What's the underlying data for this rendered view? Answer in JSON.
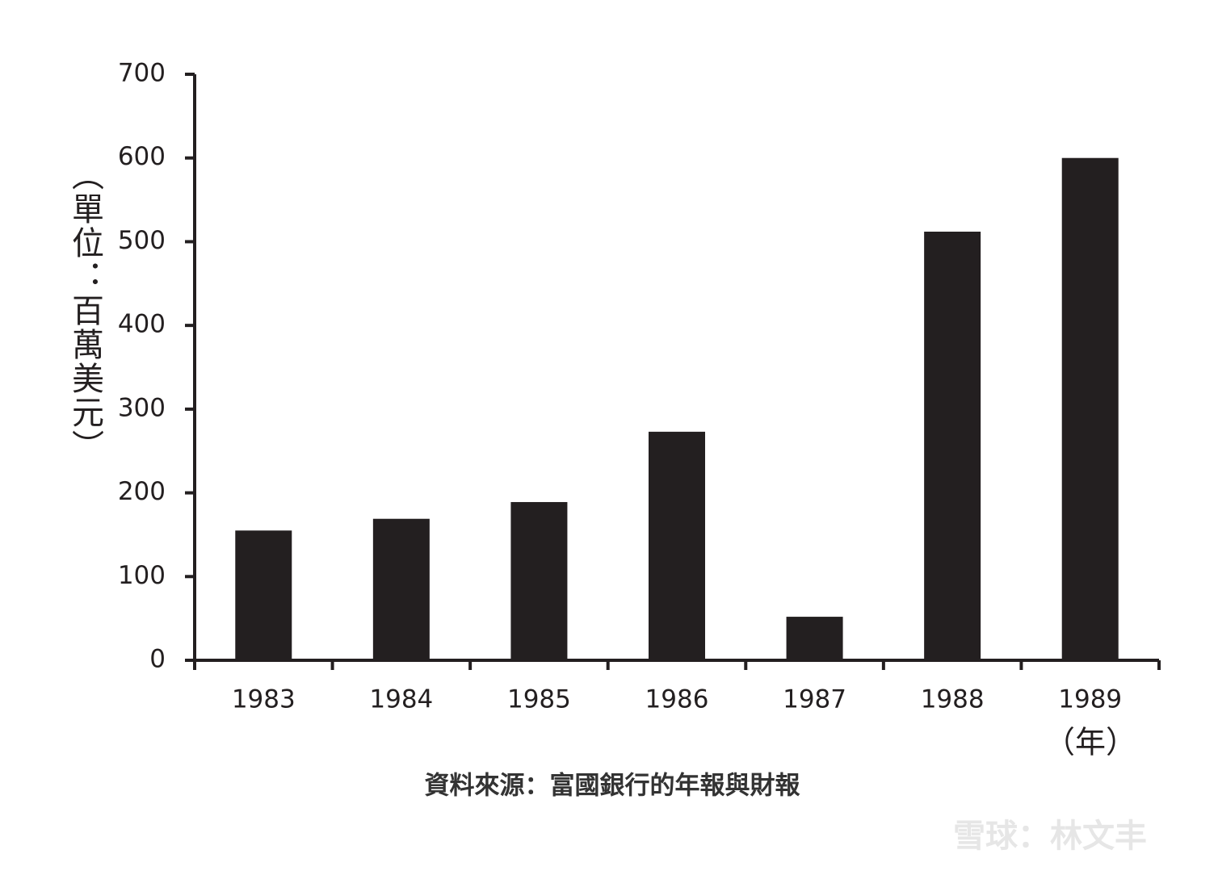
{
  "chart_data": {
    "type": "bar",
    "y_label": "（單位：百萬美元）",
    "x_label": "（年）",
    "source": "資料來源：富國銀行的年報與財報",
    "watermark": "雪球：林文丰",
    "categories": [
      "1983",
      "1984",
      "1985",
      "1986",
      "1987",
      "1988",
      "1989"
    ],
    "values": [
      155,
      169,
      189,
      273,
      52,
      512,
      600
    ],
    "color": "#231f20",
    "ylim": [
      0,
      700
    ],
    "yticks": [
      0,
      100,
      200,
      300,
      400,
      500,
      600,
      700
    ],
    "grid": false
  }
}
